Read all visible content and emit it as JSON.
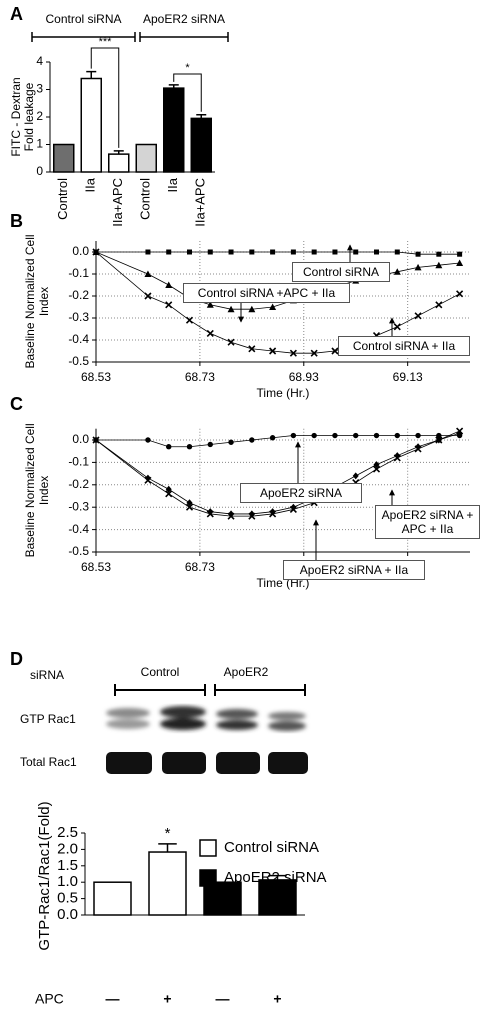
{
  "chart_data": [
    {
      "type": "bar",
      "panel": "A",
      "group_labels": [
        "Control siRNA",
        "ApoER2 siRNA"
      ],
      "ylabel": [
        "FITC - Dextran",
        "Fold leakage"
      ],
      "categories": [
        "Control",
        "IIa",
        "IIa+APC",
        "Control",
        "IIa",
        "IIa+APC"
      ],
      "values": [
        1,
        3.4,
        0.65,
        1,
        3.05,
        1.95
      ],
      "errors": [
        null,
        0.25,
        0.12,
        null,
        0.12,
        0.13
      ],
      "colors": [
        "#6e6e6e",
        "#ffffff",
        "#ffffff",
        "#d4d4d4",
        "#000000",
        "#000000"
      ],
      "significance": [
        "***",
        "*"
      ],
      "ylim": [
        0,
        4
      ],
      "yticks": [
        0,
        1,
        2,
        3,
        4
      ]
    },
    {
      "type": "line",
      "panel": "B",
      "ylabel": [
        "Baseline Normalized Cell",
        "Index"
      ],
      "xlabel": "Time (Hr.)",
      "x": [
        68.53,
        68.63,
        68.67,
        68.71,
        68.75,
        68.79,
        68.83,
        68.87,
        68.91,
        68.95,
        68.99,
        69.03,
        69.07,
        69.11,
        69.15,
        69.19,
        69.23
      ],
      "series": [
        {
          "name": "Control siRNA",
          "color": "#000000",
          "marker": "square",
          "values": [
            0,
            0,
            0,
            0,
            0,
            0,
            0,
            0,
            0,
            0,
            0,
            0,
            0,
            0,
            -0.01,
            -0.01,
            -0.01
          ]
        },
        {
          "name": "Control siRNA +APC + IIa",
          "color": "#000000",
          "marker": "triangle",
          "values": [
            0,
            -0.1,
            -0.15,
            -0.21,
            -0.24,
            -0.26,
            -0.26,
            -0.25,
            -0.22,
            -0.19,
            -0.16,
            -0.13,
            -0.11,
            -0.09,
            -0.07,
            -0.06,
            -0.05
          ]
        },
        {
          "name": "Control siRNA + IIa",
          "color": "#000000",
          "marker": "cross",
          "values": [
            0,
            -0.2,
            -0.24,
            -0.31,
            -0.37,
            -0.41,
            -0.44,
            -0.45,
            -0.46,
            -0.46,
            -0.45,
            -0.42,
            -0.38,
            -0.34,
            -0.29,
            -0.24,
            -0.19
          ]
        }
      ],
      "xlim": [
        68.53,
        69.25
      ],
      "xticks": [
        68.53,
        68.73,
        68.93,
        69.13
      ],
      "ylim": [
        -0.5,
        0.05
      ],
      "yticks": [
        {
          "value": 0,
          "label": "0.0"
        },
        -0.1,
        -0.2,
        -0.3,
        -0.4,
        -0.5
      ],
      "grid": true
    },
    {
      "type": "line",
      "panel": "C",
      "ylabel": [
        "Baseline Normalized Cell",
        "Index"
      ],
      "xlabel": "Time (Hr.)",
      "x": [
        68.53,
        68.63,
        68.67,
        68.71,
        68.75,
        68.79,
        68.83,
        68.87,
        68.91,
        68.95,
        68.99,
        69.03,
        69.07,
        69.11,
        69.15,
        69.19,
        69.23
      ],
      "series": [
        {
          "name": "ApoER2 siRNA",
          "color": "#000000",
          "marker": "circle",
          "values": [
            0,
            0,
            -0.03,
            -0.03,
            -0.02,
            -0.01,
            0,
            0.01,
            0.02,
            0.02,
            0.02,
            0.02,
            0.02,
            0.02,
            0.02,
            0.02,
            0.02
          ]
        },
        {
          "name": "ApoER2 siRNA + APC + IIa",
          "color": "#000000",
          "marker": "diamond",
          "values": [
            0,
            -0.17,
            -0.22,
            -0.28,
            -0.32,
            -0.33,
            -0.33,
            -0.32,
            -0.3,
            -0.26,
            -0.21,
            -0.16,
            -0.11,
            -0.07,
            -0.03,
            0,
            0.03
          ]
        },
        {
          "name": "ApoER2 siRNA + IIa",
          "color": "#000000",
          "marker": "cross",
          "values": [
            0,
            -0.18,
            -0.24,
            -0.3,
            -0.33,
            -0.34,
            -0.34,
            -0.33,
            -0.31,
            -0.28,
            -0.24,
            -0.19,
            -0.13,
            -0.08,
            -0.04,
            0,
            0.04
          ]
        }
      ],
      "xlim": [
        68.53,
        69.25
      ],
      "xticks": [
        68.53,
        68.73,
        68.93,
        69.13
      ],
      "ylim": [
        -0.5,
        0.05
      ],
      "yticks": [
        {
          "value": 0,
          "label": "0.0"
        },
        -0.1,
        -0.2,
        -0.3,
        -0.4,
        -0.5
      ],
      "grid": true
    },
    {
      "type": "bar",
      "panel": "D",
      "ylabel": "GTP-Rac1/Rac1(Fold)",
      "row_label": "APC",
      "categories": [
        "—",
        "+",
        "—",
        "+"
      ],
      "series": [
        {
          "name": "Control siRNA",
          "color": "#ffffff",
          "values": [
            1,
            1.92,
            null,
            null
          ],
          "errors": [
            null,
            0.25,
            null,
            null
          ]
        },
        {
          "name": "ApoER2 siRNA",
          "color": "#000000",
          "values": [
            null,
            null,
            1,
            1.07
          ],
          "errors": [
            null,
            null,
            null,
            0.13
          ]
        }
      ],
      "significance": [
        "*"
      ],
      "ylim": [
        0,
        2.5
      ],
      "yticks": [
        {
          "value": 0,
          "label": "0.0"
        },
        {
          "value": 0.5,
          "label": "0.5"
        },
        {
          "value": 1,
          "label": "1.0"
        },
        {
          "value": 1.5,
          "label": "1.5"
        },
        {
          "value": 2,
          "label": "2.0"
        },
        {
          "value": 2.5,
          "label": "2.5"
        }
      ]
    }
  ],
  "blot": {
    "header": "siRNA",
    "groups": [
      "Control",
      "ApoER2"
    ],
    "rows": [
      "GTP Rac1",
      "Total Rac1"
    ]
  }
}
